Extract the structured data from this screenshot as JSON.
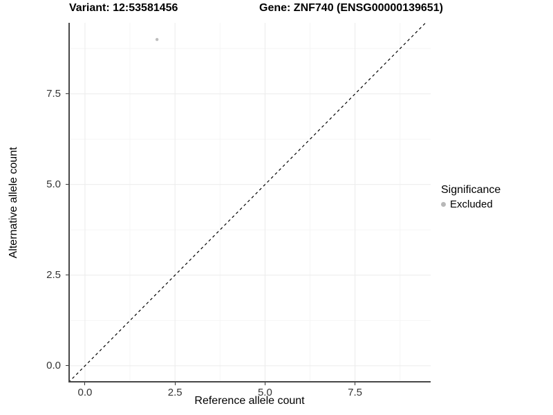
{
  "chart_data": {
    "type": "scatter",
    "titles": {
      "left": "Variant: 12:53581456",
      "right": "Gene: ZNF740 (ENSG00000139651)"
    },
    "xlabel": "Reference allele count",
    "ylabel": "Alternative allele count",
    "x_ticks": [
      0.0,
      2.5,
      5.0,
      7.5
    ],
    "y_ticks": [
      0.0,
      2.5,
      5.0,
      7.5
    ],
    "x_minor_gridlines": [
      1.25,
      3.75,
      6.25,
      8.75
    ],
    "y_minor_gridlines": [
      1.25,
      3.75,
      6.25,
      8.75
    ],
    "xlim": [
      -0.46,
      9.6
    ],
    "ylim": [
      -0.46,
      9.46
    ],
    "grid": "on",
    "points": [
      {
        "x": 2,
        "y": 9,
        "significance": "Excluded"
      }
    ],
    "reference_line": {
      "kind": "identity",
      "slope": 1,
      "intercept": 0,
      "style": "dashed"
    },
    "legend": {
      "title": "Significance",
      "position": "right",
      "items": [
        {
          "label": "Excluded",
          "color": "#b8b8b8"
        }
      ]
    },
    "colors": {
      "point": "#bdbdbd",
      "grid_major": "#ebebeb",
      "grid_minor": "#f5f5f5",
      "axis_line": "#474747",
      "reference_line": "#000000",
      "tick_text": "#333333"
    }
  }
}
